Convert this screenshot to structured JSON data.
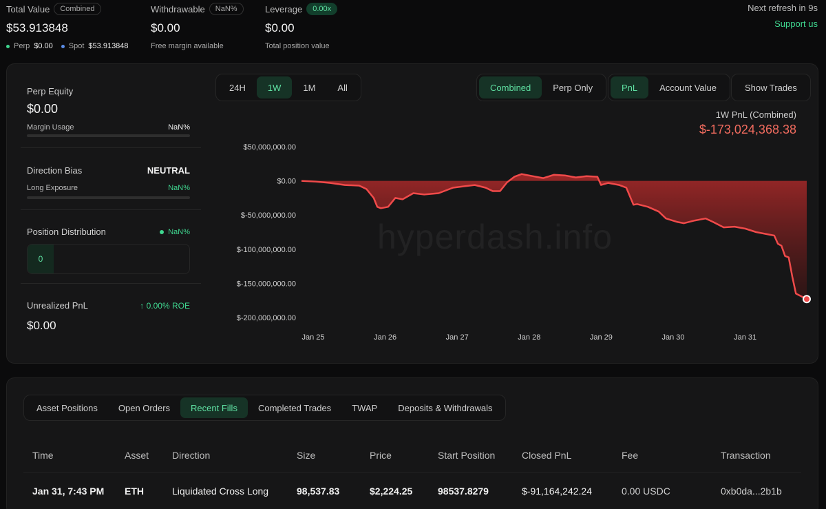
{
  "header": {
    "total_value": {
      "label": "Total Value",
      "badge": "Combined",
      "value": "$53.913848",
      "perp_label": "Perp",
      "perp_value": "$0.00",
      "spot_label": "Spot",
      "spot_value": "$53.913848"
    },
    "withdrawable": {
      "label": "Withdrawable",
      "badge": "NaN%",
      "value": "$0.00",
      "sub": "Free margin available"
    },
    "leverage": {
      "label": "Leverage",
      "badge": "0.00x",
      "value": "$0.00",
      "sub": "Total position value"
    },
    "refresh": "Next refresh in 9s",
    "support": "Support us"
  },
  "left": {
    "perp_equity": {
      "label": "Perp Equity",
      "value": "$0.00",
      "margin_label": "Margin Usage",
      "margin_value": "NaN%"
    },
    "direction": {
      "label": "Direction Bias",
      "value": "NEUTRAL",
      "exposure_label": "Long Exposure",
      "exposure_value": "NaN%"
    },
    "distribution": {
      "label": "Position Distribution",
      "value": "NaN%",
      "count": "0"
    },
    "unrealized": {
      "label": "Unrealized PnL",
      "roe": "0.00% ROE",
      "value": "$0.00"
    }
  },
  "controls": {
    "ranges": [
      "24H",
      "1W",
      "1M",
      "All"
    ],
    "range_active": "1W",
    "mode": [
      "Combined",
      "Perp Only"
    ],
    "metric": [
      "PnL",
      "Account Value"
    ],
    "show_trades": "Show Trades"
  },
  "chart_title": "1W PnL (Combined)",
  "chart_value": "$-173,024,368.38",
  "watermark": "hyperdash.info",
  "chart_data": {
    "type": "area",
    "ylim": [
      -200000000,
      50000000
    ],
    "yticks": [
      "$50,000,000.00",
      "$0.00",
      "$-50,000,000.00",
      "$-100,000,000.00",
      "$-150,000,000.00",
      "$-200,000,000.00"
    ],
    "xticks": [
      "Jan 25",
      "Jan 26",
      "Jan 27",
      "Jan 28",
      "Jan 29",
      "Jan 30",
      "Jan 31"
    ],
    "x": [
      0,
      0.2,
      0.4,
      0.6,
      0.8,
      0.9,
      1.0,
      1.05,
      1.1,
      1.2,
      1.3,
      1.4,
      1.55,
      1.7,
      1.9,
      2.1,
      2.25,
      2.4,
      2.55,
      2.65,
      2.75,
      2.85,
      2.95,
      3.05,
      3.2,
      3.35,
      3.5,
      3.65,
      3.8,
      3.95,
      4.1,
      4.15,
      4.25,
      4.4,
      4.5,
      4.6,
      4.65,
      4.8,
      4.95,
      5.05,
      5.2,
      5.3,
      5.45,
      5.6,
      5.7,
      5.85,
      6.0,
      6.15,
      6.3,
      6.45,
      6.55,
      6.6,
      6.65,
      6.7,
      6.75,
      6.8,
      6.85,
      7.0
    ],
    "y": [
      0,
      -1000000,
      -3000000,
      -6000000,
      -7000000,
      -12000000,
      -25000000,
      -38000000,
      -40000000,
      -38000000,
      -25000000,
      -27000000,
      -18000000,
      -20000000,
      -18000000,
      -10000000,
      -8000000,
      -6000000,
      -10000000,
      -15000000,
      -15000000,
      -2000000,
      6000000,
      10000000,
      7000000,
      4000000,
      9000000,
      8000000,
      5000000,
      7000000,
      6000000,
      -6000000,
      -3000000,
      -6000000,
      -10000000,
      -35000000,
      -34000000,
      -38000000,
      -45000000,
      -55000000,
      -60000000,
      -62000000,
      -58000000,
      -55000000,
      -60000000,
      -68000000,
      -67000000,
      -70000000,
      -75000000,
      -78000000,
      -80000000,
      -92000000,
      -95000000,
      -110000000,
      -112000000,
      -140000000,
      -165000000,
      -173024368.38
    ],
    "series_color": "#f04a4a"
  },
  "table": {
    "tabs": [
      "Asset Positions",
      "Open Orders",
      "Recent Fills",
      "Completed Trades",
      "TWAP",
      "Deposits & Withdrawals"
    ],
    "tab_active": "Recent Fills",
    "columns": [
      "Time",
      "Asset",
      "Direction",
      "Size",
      "Price",
      "Start Position",
      "Closed PnL",
      "Fee",
      "Transaction"
    ],
    "rows": [
      [
        "Jan 31, 7:43 PM",
        "ETH",
        "Liquidated Cross Long",
        "98,537.83",
        "$2,224.25",
        "98537.8279",
        "$-91,164,242.24",
        "0.00 USDC",
        "0xb0da...2b1b"
      ]
    ]
  }
}
